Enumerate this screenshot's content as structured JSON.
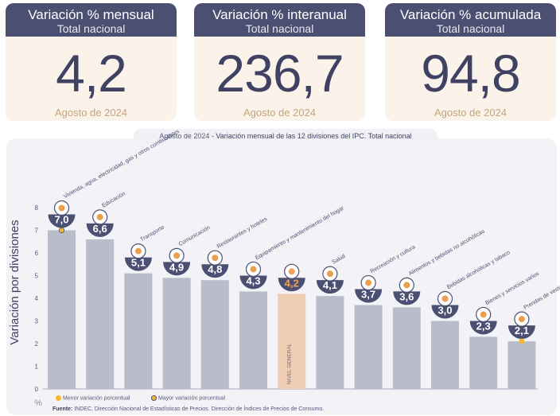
{
  "cards": [
    {
      "title": "Variación % mensual",
      "subtitle": "Total nacional",
      "value": "4,2",
      "date": "Agosto de 2024"
    },
    {
      "title": "Variación % interanual",
      "subtitle": "Total nacional",
      "value": "236,7",
      "date": "Agosto de 2024"
    },
    {
      "title": "Variación % acumulada",
      "subtitle": "Total nacional",
      "value": "94,8",
      "date": "Agosto de 2024"
    }
  ],
  "chart_caption": {
    "date": "Agosto de 2024",
    "text": " - Variación mensual de las 12 divisiones del IPC. Total nacional"
  },
  "chart_data": {
    "type": "bar",
    "title": "Variación mensual de las 12 divisiones del IPC. Total nacional",
    "ylabel": "Variación por divisiones",
    "yunit": "%",
    "ylim": [
      0,
      8
    ],
    "yticks": [
      "0",
      "1",
      "2",
      "3",
      "4",
      "5",
      "6",
      "7",
      "8"
    ],
    "categories": [
      "Vivienda, agua, electricidad, gas y otros combustibles",
      "Educación",
      "Transporte",
      "Comunicación",
      "Restaurantes y hoteles",
      "Equipamiento y mantenimiento del hogar",
      "NIVEL GENERAL",
      "Salud",
      "Recreación y cultura",
      "Alimentos y bebidas no alcohólicas",
      "Bebidas alcohólicas y tabaco",
      "Bienes y servicios varios",
      "Prendas de vestir y calzado"
    ],
    "values": [
      7.0,
      6.6,
      5.1,
      4.9,
      4.8,
      4.3,
      4.2,
      4.1,
      3.7,
      3.6,
      3.0,
      2.3,
      2.1
    ],
    "value_labels": [
      "7,0",
      "6,6",
      "5,1",
      "4,9",
      "4,8",
      "4,3",
      "4,2",
      "4,1",
      "3,7",
      "3,6",
      "3,0",
      "2,3",
      "2,1"
    ],
    "highlight": "NIVEL GENERAL",
    "max_marker": "Vivienda, agua, electricidad, gas y otros combustibles",
    "min_marker": "Prendas de vestir y calzado",
    "legend": [
      "Menor variación porcentual",
      "Mayor variación porcentual"
    ],
    "colors": {
      "bar": "#b9bdc9",
      "highlight": "#eecdb2",
      "bubble": "#4b4f72",
      "highlight_text": "#f2a05a",
      "marker": "#f5b730"
    }
  },
  "source": {
    "label": "Fuente:",
    "text": " INDEC, Dirección Nacional de Estadísticas de Precios. Dirección de Índices de Precios de Consumo."
  }
}
